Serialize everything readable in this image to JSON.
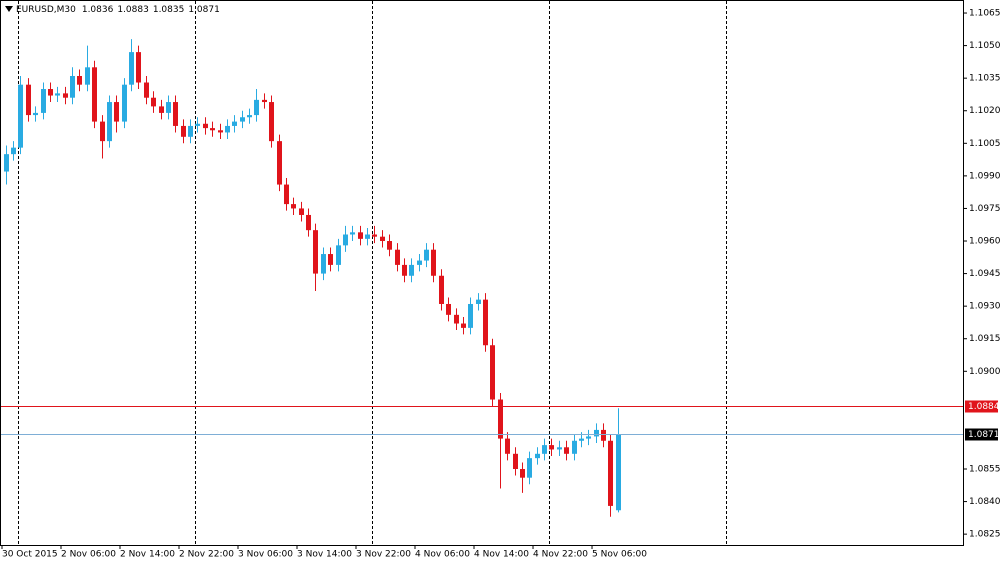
{
  "chart_data": {
    "type": "candlestick",
    "symbol": "EURUSD,M30",
    "bull_color": "#29abe2",
    "bear_color": "#e0141b",
    "ask": 1.0884,
    "ask_color": "#e0141b",
    "bid_color": "#7eaed6",
    "grid": false,
    "period_separators": [
      1.7,
      25.7,
      49.7,
      73.7,
      97.7
    ],
    "xlim": [
      -0.77,
      129.8
    ],
    "xticks": [
      {
        "value": -0.5,
        "label": "30 Oct 2015"
      },
      {
        "value": 7.5,
        "label": "2 Nov 06:00"
      },
      {
        "value": 15.5,
        "label": "2 Nov 14:00"
      },
      {
        "value": 23.5,
        "label": "2 Nov 22:00"
      },
      {
        "value": 31.5,
        "label": "3 Nov 06:00"
      },
      {
        "value": 39.5,
        "label": "3 Nov 14:00"
      },
      {
        "value": 47.5,
        "label": "3 Nov 22:00"
      },
      {
        "value": 55.5,
        "label": "4 Nov 06:00"
      },
      {
        "value": 63.5,
        "label": "4 Nov 14:00"
      },
      {
        "value": 71.5,
        "label": "4 Nov 22:00"
      },
      {
        "value": 79.5,
        "label": "5 Nov 06:00"
      }
    ],
    "ylim": [
      1.082,
      1.1071
    ],
    "yticks": [
      1.1065,
      {
        "value": 1.105,
        "label": "1.1050"
      },
      1.1035,
      {
        "value": 1.102,
        "label": "1.1020"
      },
      1.1005,
      {
        "value": 1.099,
        "label": "1.0990"
      },
      1.0975,
      {
        "value": 1.096,
        "label": "1.0960"
      },
      1.0945,
      {
        "value": 1.093,
        "label": "1.0930"
      },
      1.0915,
      {
        "value": 1.09,
        "label": "1.0900"
      },
      1.0855,
      {
        "value": 1.084,
        "label": "1.0840"
      },
      1.0825
    ],
    "open": [
      1.0992,
      1.1,
      1.1003,
      1.1032,
      1.1018,
      1.1019,
      1.103,
      1.1027,
      1.1028,
      1.1026,
      1.1036,
      1.1032,
      1.104,
      1.1015,
      1.1006,
      1.1024,
      1.1015,
      1.1032,
      1.1047,
      1.1033,
      1.1026,
      1.1022,
      1.1019,
      1.1024,
      1.1013,
      1.1008,
      1.1013,
      1.1014,
      1.1012,
      1.1011,
      1.101,
      1.1013,
      1.1015,
      1.1017,
      1.1018,
      1.1025,
      1.1024,
      1.1006,
      1.0986,
      1.0977,
      1.0975,
      1.0972,
      1.0965,
      1.0945,
      1.0954,
      1.0949,
      1.0958,
      1.0963,
      1.0964,
      1.0961,
      1.0963,
      1.0962,
      1.096,
      1.0956,
      1.0949,
      1.0944,
      1.0949,
      1.0951,
      1.0956,
      1.0944,
      1.0931,
      1.0926,
      1.0922,
      1.092,
      1.0931,
      1.0933,
      1.0912,
      1.0887,
      1.0869,
      1.0862,
      1.0855,
      1.0851,
      1.086,
      1.0862,
      1.0866,
      1.0864,
      1.0865,
      1.0862,
      1.0868,
      1.0869,
      1.087,
      1.0873,
      1.0868,
      1.0836
    ],
    "high": [
      1.1004,
      1.1006,
      1.1036,
      1.1035,
      1.1022,
      1.1033,
      1.1033,
      1.1031,
      1.1031,
      1.104,
      1.1039,
      1.105,
      1.1043,
      1.1018,
      1.1027,
      1.1027,
      1.1035,
      1.1053,
      1.105,
      1.1036,
      1.1029,
      1.1025,
      1.1027,
      1.1027,
      1.1016,
      1.1016,
      1.1017,
      1.1017,
      1.1015,
      1.1014,
      1.1016,
      1.1018,
      1.102,
      1.1021,
      1.103,
      1.1028,
      1.1027,
      1.1009,
      1.0989,
      1.098,
      1.0978,
      1.0975,
      1.0968,
      1.0957,
      1.0957,
      1.0961,
      1.0967,
      1.0967,
      1.0967,
      1.0966,
      1.0967,
      1.0965,
      1.0963,
      1.0959,
      1.0952,
      1.0952,
      1.0954,
      1.0959,
      1.0959,
      1.0947,
      1.0934,
      1.0929,
      1.0925,
      1.0934,
      1.0936,
      1.0936,
      1.0915,
      1.089,
      1.0872,
      1.0865,
      1.0858,
      1.0863,
      1.0865,
      1.0869,
      1.0869,
      1.0868,
      1.0868,
      1.0871,
      1.0872,
      1.0873,
      1.0876,
      1.0876,
      1.0871,
      1.0883
    ],
    "low": [
      1.0986,
      1.0997,
      1.1,
      1.1015,
      1.1015,
      1.1016,
      1.1024,
      1.1024,
      1.1023,
      1.1023,
      1.1029,
      1.1029,
      1.1012,
      1.0998,
      1.1003,
      1.101,
      1.1012,
      1.1029,
      1.103,
      1.1023,
      1.1019,
      1.1016,
      1.1016,
      1.101,
      1.1005,
      1.1005,
      1.101,
      1.1009,
      1.1008,
      1.1007,
      1.1007,
      1.101,
      1.1012,
      1.1014,
      1.1015,
      1.1021,
      1.1003,
      1.0983,
      1.0974,
      1.0972,
      1.0969,
      1.0962,
      1.0937,
      1.0942,
      1.0946,
      1.0946,
      1.0955,
      1.096,
      1.0958,
      1.0958,
      1.0959,
      1.0957,
      1.0953,
      1.0946,
      1.0941,
      1.0941,
      1.0946,
      1.0948,
      1.0941,
      1.0928,
      1.0923,
      1.0919,
      1.0917,
      1.0917,
      1.0928,
      1.0909,
      1.0884,
      1.0846,
      1.0859,
      1.0852,
      1.0844,
      1.0848,
      1.0857,
      1.0859,
      1.0861,
      1.0861,
      1.0859,
      1.0859,
      1.0865,
      1.0866,
      1.0867,
      1.0865,
      1.0833,
      1.0835
    ],
    "close": [
      1.1,
      1.1003,
      1.1032,
      1.1018,
      1.1019,
      1.103,
      1.1027,
      1.1028,
      1.1026,
      1.1036,
      1.1032,
      1.104,
      1.1015,
      1.1006,
      1.1024,
      1.1015,
      1.1032,
      1.1047,
      1.1033,
      1.1026,
      1.1022,
      1.1019,
      1.1024,
      1.1013,
      1.1008,
      1.1013,
      1.1014,
      1.1012,
      1.1011,
      1.101,
      1.1013,
      1.1015,
      1.1017,
      1.1018,
      1.1025,
      1.1024,
      1.1006,
      1.0986,
      1.0977,
      1.0975,
      1.0972,
      1.0965,
      1.0945,
      1.0954,
      1.0949,
      1.0958,
      1.0963,
      1.0964,
      1.0961,
      1.0963,
      1.0962,
      1.096,
      1.0956,
      1.0949,
      1.0944,
      1.0949,
      1.0951,
      1.0956,
      1.0944,
      1.0931,
      1.0926,
      1.0922,
      1.092,
      1.0931,
      1.0933,
      1.0912,
      1.0887,
      1.0869,
      1.0862,
      1.0855,
      1.0851,
      1.086,
      1.0862,
      1.0866,
      1.0864,
      1.0865,
      1.0862,
      1.0868,
      1.0869,
      1.087,
      1.0873,
      1.0868,
      1.0838,
      1.0871
    ]
  }
}
